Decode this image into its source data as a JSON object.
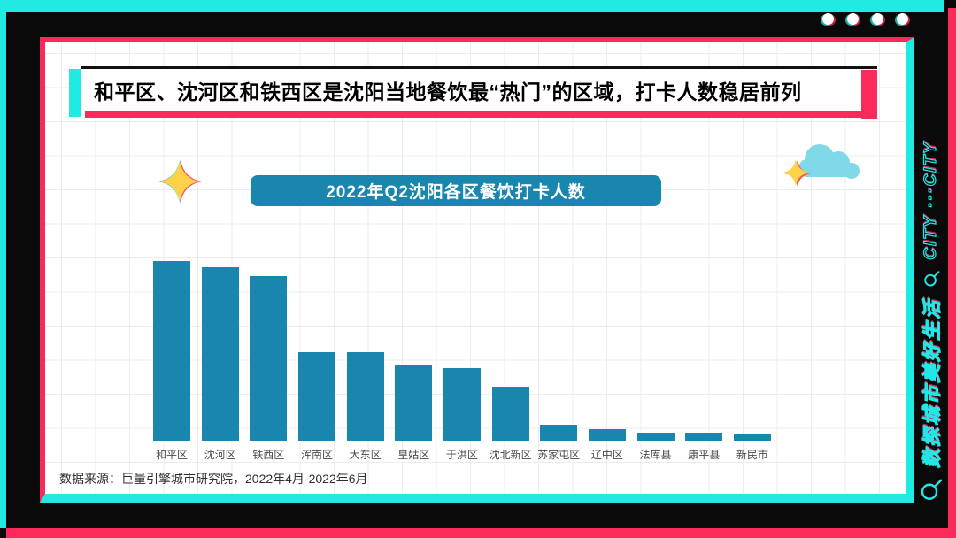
{
  "theme": {
    "accent_cyan": "#21e9e4",
    "accent_pink": "#fb2a5a",
    "teal": "#1886ad",
    "window_dots_count": 4
  },
  "header": {
    "title": "和平区、沈河区和铁西区是沈阳当地餐饮最“热门”的区域，打卡人数稳居前列"
  },
  "chart_data": {
    "type": "bar",
    "title": "2022年Q2沈阳各区餐饮打卡人数",
    "categories": [
      "和平区",
      "沈河区",
      "铁西区",
      "浑南区",
      "大东区",
      "皇姑区",
      "于洪区",
      "沈北新区",
      "苏家屯区",
      "辽中区",
      "法库县",
      "康平县",
      "新民市"
    ],
    "values": [
      100,
      96.5,
      91.5,
      49.5,
      49.5,
      42,
      40.5,
      30,
      9,
      6.5,
      4.5,
      4.5,
      3.5
    ],
    "value_note": "relative check-in volume, % of tallest bar (no y-axis labels shown in figure)",
    "bar_color": "#1886ad",
    "xlabel": "",
    "ylabel": "",
    "legend": "none",
    "grid": "graph-paper background, no axis lines"
  },
  "footer": {
    "source": "数据来源：巨量引擎城市研究院，2022年4月-2022年6月"
  },
  "sidebar": {
    "tagline_cn": "数探城市美好生活",
    "tagline_en": "CITY ···CITY"
  }
}
